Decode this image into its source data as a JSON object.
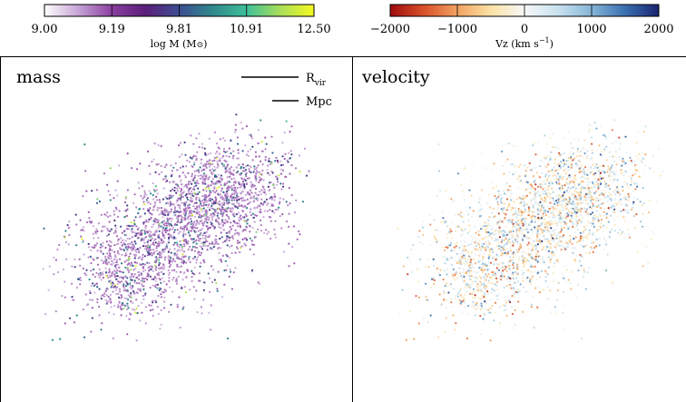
{
  "colorbars": [
    {
      "colormap": "viridis-like",
      "stops": [
        "#ffffff",
        "#c7a4d6",
        "#8a3fa0",
        "#5a1f7a",
        "#3d4d91",
        "#2f8a8c",
        "#3fbf9a",
        "#a8de5a",
        "#f6f91f"
      ],
      "ticks": [
        "9.00",
        "9.19",
        "9.81",
        "10.91",
        "12.50"
      ],
      "label": {
        "main": "log M (M",
        "symbol": "⊙",
        "close": ")"
      }
    },
    {
      "colormap": "RdYlBu",
      "stops": [
        "#9e0b0e",
        "#d8502a",
        "#f2a261",
        "#fbe2a6",
        "#f7f7f7",
        "#c8e2ef",
        "#86b5d7",
        "#3a6fb0",
        "#1a2470"
      ],
      "ticks": [
        "−2000",
        "−1000",
        "0",
        "1000",
        "2000"
      ],
      "label": {
        "main": "Vz (km s",
        "sup": "−1",
        "close": ")"
      }
    }
  ],
  "panels": [
    {
      "title": "mass",
      "legend": [
        {
          "label": "R",
          "sub": "vir"
        },
        {
          "label": "Mpc"
        }
      ]
    },
    {
      "title": "velocity"
    }
  ],
  "chart_data": [
    {
      "type": "scatter",
      "panel": "mass",
      "color_variable": "log M (M⊙)",
      "color_range": [
        9.0,
        12.5
      ],
      "cluster": {
        "n_points": 2600,
        "components": [
          {
            "cx": 0.0,
            "cy": 0.0,
            "sx": 1.0,
            "sy": 0.6,
            "rot": -0.5,
            "w": 0.6
          },
          {
            "cx": 0.9,
            "cy": -0.7,
            "sx": 0.6,
            "sy": 0.45,
            "rot": -0.4,
            "w": 0.25
          },
          {
            "cx": -1.0,
            "cy": 0.8,
            "sx": 0.55,
            "sy": 0.45,
            "rot": -0.3,
            "w": 0.15
          }
        ],
        "value_distribution": {
          "low_fraction": 0.82,
          "mid_fraction": 0.15,
          "high_fraction": 0.03
        }
      }
    },
    {
      "type": "scatter",
      "panel": "velocity",
      "color_variable": "Vz (km s^-1)",
      "color_range": [
        -2000,
        2000
      ],
      "cluster": {
        "n_points": 2600,
        "same_positions_as": "mass",
        "value_distribution": {
          "mean": 0,
          "sigma": 700
        }
      }
    }
  ]
}
